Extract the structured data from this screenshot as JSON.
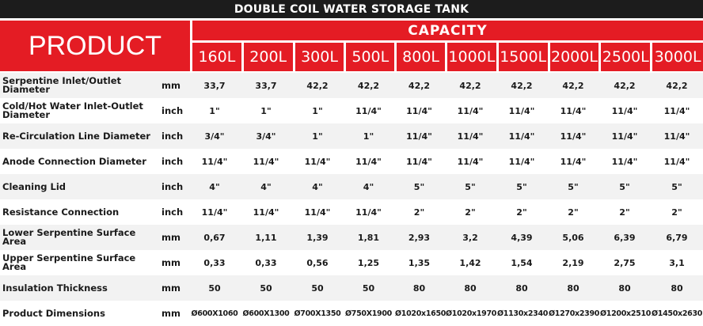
{
  "title": "DOUBLE COIL WATER STORAGE TANK",
  "product_label": "PRODUCT",
  "capacity_label": "CAPACITY",
  "capacities": [
    "160L",
    "200L",
    "300L",
    "500L",
    "800L",
    "1000L",
    "1500L",
    "2000L",
    "2500L",
    "3000L"
  ],
  "rows": [
    {
      "label": "Serpentine Inlet/Outlet Diameter",
      "unit": "mm",
      "values": [
        "33,7",
        "33,7",
        "42,2",
        "42,2",
        "42,2",
        "42,2",
        "42,2",
        "42,2",
        "42,2",
        "42,2"
      ]
    },
    {
      "label": "Cold/Hot Water Inlet-Outlet Diameter",
      "unit": "inch",
      "values": [
        "1\"",
        "1\"",
        "1\"",
        "11/4\"",
        "11/4\"",
        "11/4\"",
        "11/4\"",
        "11/4\"",
        "11/4\"",
        "11/4\""
      ]
    },
    {
      "label": "Re-Circulation Line Diameter",
      "unit": "inch",
      "values": [
        "3/4\"",
        "3/4\"",
        "1\"",
        "1\"",
        "11/4\"",
        "11/4\"",
        "11/4\"",
        "11/4\"",
        "11/4\"",
        "11/4\""
      ]
    },
    {
      "label": "Anode Connection Diameter",
      "unit": "inch",
      "values": [
        "11/4\"",
        "11/4\"",
        "11/4\"",
        "11/4\"",
        "11/4\"",
        "11/4\"",
        "11/4\"",
        "11/4\"",
        "11/4\"",
        "11/4\""
      ]
    },
    {
      "label": "Cleaning Lid",
      "unit": "inch",
      "values": [
        "4\"",
        "4\"",
        "4\"",
        "4\"",
        "5\"",
        "5\"",
        "5\"",
        "5\"",
        "5\"",
        "5\""
      ]
    },
    {
      "label": "Resistance Connection",
      "unit": "inch",
      "values": [
        "11/4\"",
        "11/4\"",
        "11/4\"",
        "11/4\"",
        "2\"",
        "2\"",
        "2\"",
        "2\"",
        "2\"",
        "2\""
      ]
    },
    {
      "label": "Lower Serpentine Surface Area",
      "unit": "mm",
      "values": [
        "0,67",
        "1,11",
        "1,39",
        "1,81",
        "2,93",
        "3,2",
        "4,39",
        "5,06",
        "6,39",
        "6,79"
      ]
    },
    {
      "label": "Upper Serpentine Surface Area",
      "unit": "mm",
      "values": [
        "0,33",
        "0,33",
        "0,56",
        "1,25",
        "1,35",
        "1,42",
        "1,54",
        "2,19",
        "2,75",
        "3,1"
      ]
    },
    {
      "label": "Insulation Thickness",
      "unit": "mm",
      "values": [
        "50",
        "50",
        "50",
        "50",
        "80",
        "80",
        "80",
        "80",
        "80",
        "80"
      ]
    },
    {
      "label": "Product Dimensions",
      "unit": "mm",
      "values": [
        "Ø600X1060",
        "Ø600X1300",
        "Ø700X1350",
        "Ø750X1900",
        "Ø1020x1650",
        "Ø1020x1970",
        "Ø1130x2340",
        "Ø1270x2390",
        "Ø1200x2510",
        "Ø1450x2630"
      ]
    }
  ]
}
